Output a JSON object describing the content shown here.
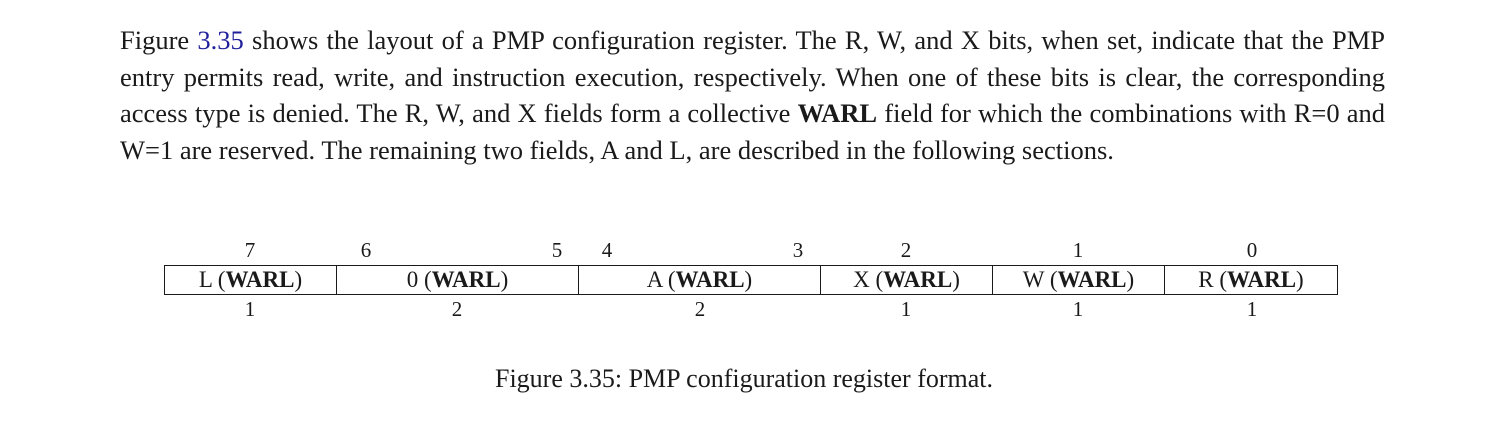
{
  "paragraph": {
    "text_1": "Figure ",
    "figure_ref": "3.35",
    "text_2": " shows the layout of a PMP configuration register. The R, W, and X bits, when set, indicate that the PMP entry permits read, write, and instruction execution, respectively. When one of these bits is clear, the corresponding access type is denied. The R, W, and X fields form a collective ",
    "bold_term": "WARL",
    "text_3": " field for which the combinations with R=0 and W=1 are reserved. The remaining two fields, A and L, are described in the following sections."
  },
  "register": {
    "bit_numbers": [
      "7",
      "6",
      "5",
      "4",
      "3",
      "2",
      "1",
      "0"
    ],
    "fields": [
      {
        "name": "L",
        "type": "WARL",
        "width": "1"
      },
      {
        "name": "0",
        "type": "WARL",
        "width": "2"
      },
      {
        "name": "A",
        "type": "WARL",
        "width": "2"
      },
      {
        "name": "X",
        "type": "WARL",
        "width": "1"
      },
      {
        "name": "W",
        "type": "WARL",
        "width": "1"
      },
      {
        "name": "R",
        "type": "WARL",
        "width": "1"
      }
    ]
  },
  "caption": "Figure 3.35: PMP configuration register format.",
  "colors": {
    "link": "#1f1f9a",
    "text": "#1a1a1a"
  }
}
